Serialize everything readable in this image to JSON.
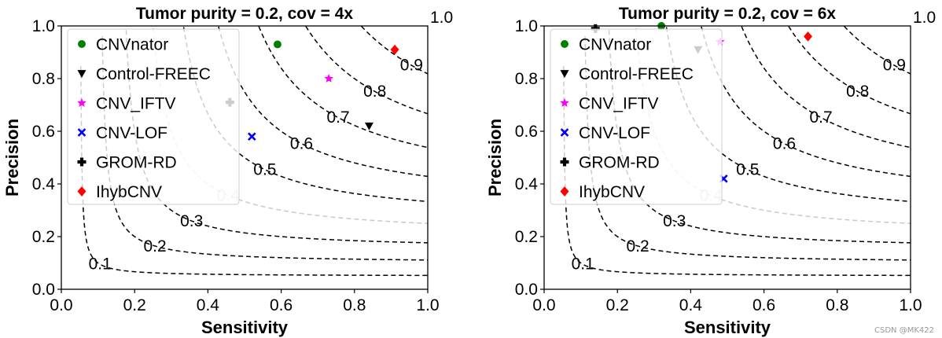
{
  "chart_data": [
    {
      "type": "scatter",
      "title": "Tumor purity = 0.2, cov = 4x",
      "xlabel": "Sensitivity",
      "ylabel": "Precision",
      "xlim": [
        0.0,
        1.0
      ],
      "ylim": [
        0.0,
        1.0
      ],
      "xticks": [
        "0.0",
        "0.2",
        "0.4",
        "0.6",
        "0.8",
        "1.0"
      ],
      "yticks": [
        "0.0",
        "0.2",
        "0.4",
        "0.6",
        "0.8",
        "1.0"
      ],
      "legend_position": "top-left",
      "iso_f1_curves": [
        {
          "f": 0.1,
          "label": "0.1",
          "label_x": 0.1,
          "shade": "dark"
        },
        {
          "f": 0.2,
          "label": "0.2",
          "label_x": 0.25,
          "shade": "dark"
        },
        {
          "f": 0.3,
          "label": "0.3",
          "label_x": 0.35,
          "shade": "dark"
        },
        {
          "f": 0.4,
          "label": "0.4",
          "label_x": 0.45,
          "shade": "light"
        },
        {
          "f": 0.5,
          "label": "0.5",
          "label_x": 0.55,
          "shade": "dark"
        },
        {
          "f": 0.6,
          "label": "0.6",
          "label_x": 0.65,
          "shade": "dark"
        },
        {
          "f": 0.7,
          "label": "0.7",
          "label_x": 0.75,
          "shade": "dark"
        },
        {
          "f": 0.8,
          "label": "0.8",
          "label_x": 0.85,
          "shade": "dark"
        },
        {
          "f": 0.9,
          "label": "0.9",
          "label_x": 0.95,
          "shade": "dark"
        },
        {
          "f": 1.0,
          "label": "1.0",
          "label_x": 1.0,
          "shade": "dark"
        }
      ],
      "series": [
        {
          "name": "CNVnator",
          "marker": "circle",
          "color": "#008000",
          "x": 0.59,
          "y": 0.93
        },
        {
          "name": "Control-FREEC",
          "marker": "triangle-down",
          "color": "#000000",
          "x": 0.84,
          "y": 0.62
        },
        {
          "name": "CNV_IFTV",
          "marker": "star",
          "color": "#ff00ff",
          "x": 0.73,
          "y": 0.8
        },
        {
          "name": "CNV-LOF",
          "marker": "x",
          "color": "#0000ff",
          "x": 0.52,
          "y": 0.58
        },
        {
          "name": "GROM-RD",
          "marker": "plus-filled",
          "color": "#000000",
          "x": 0.46,
          "y": 0.71
        },
        {
          "name": "IhybCNV",
          "marker": "diamond",
          "color": "#ff0000",
          "x": 0.91,
          "y": 0.91
        }
      ]
    },
    {
      "type": "scatter",
      "title": "Tumor purity = 0.2, cov = 6x",
      "xlabel": "Sensitivity",
      "ylabel": "Precision",
      "xlim": [
        0.0,
        1.0
      ],
      "ylim": [
        0.0,
        1.0
      ],
      "xticks": [
        "0.0",
        "0.2",
        "0.4",
        "0.6",
        "0.8",
        "1.0"
      ],
      "yticks": [
        "0.0",
        "0.2",
        "0.4",
        "0.6",
        "0.8",
        "1.0"
      ],
      "legend_position": "top-left",
      "iso_f1_curves": [
        {
          "f": 0.1,
          "label": "0.1",
          "label_x": 0.1,
          "shade": "dark"
        },
        {
          "f": 0.2,
          "label": "0.2",
          "label_x": 0.25,
          "shade": "dark"
        },
        {
          "f": 0.3,
          "label": "0.3",
          "label_x": 0.35,
          "shade": "dark"
        },
        {
          "f": 0.4,
          "label": "0.4",
          "label_x": 0.45,
          "shade": "light"
        },
        {
          "f": 0.5,
          "label": "0.5",
          "label_x": 0.55,
          "shade": "dark"
        },
        {
          "f": 0.6,
          "label": "0.6",
          "label_x": 0.65,
          "shade": "dark"
        },
        {
          "f": 0.7,
          "label": "0.7",
          "label_x": 0.75,
          "shade": "dark"
        },
        {
          "f": 0.8,
          "label": "0.8",
          "label_x": 0.85,
          "shade": "dark"
        },
        {
          "f": 0.9,
          "label": "0.9",
          "label_x": 0.95,
          "shade": "dark"
        },
        {
          "f": 1.0,
          "label": "1.0",
          "label_x": 1.0,
          "shade": "dark"
        }
      ],
      "series": [
        {
          "name": "CNVnator",
          "marker": "circle",
          "color": "#008000",
          "x": 0.32,
          "y": 1.0
        },
        {
          "name": "Control-FREEC",
          "marker": "triangle-down",
          "color": "#000000",
          "x": 0.42,
          "y": 0.91
        },
        {
          "name": "CNV_IFTV",
          "marker": "star",
          "color": "#ff00ff",
          "x": 0.48,
          "y": 0.94
        },
        {
          "name": "CNV-LOF",
          "marker": "x",
          "color": "#0000ff",
          "x": 0.49,
          "y": 0.42
        },
        {
          "name": "GROM-RD",
          "marker": "plus-filled",
          "color": "#000000",
          "x": 0.14,
          "y": 0.99
        },
        {
          "name": "IhybCNV",
          "marker": "diamond",
          "color": "#ff0000",
          "x": 0.72,
          "y": 0.96
        }
      ]
    }
  ],
  "watermark": "CSDN @MK422"
}
